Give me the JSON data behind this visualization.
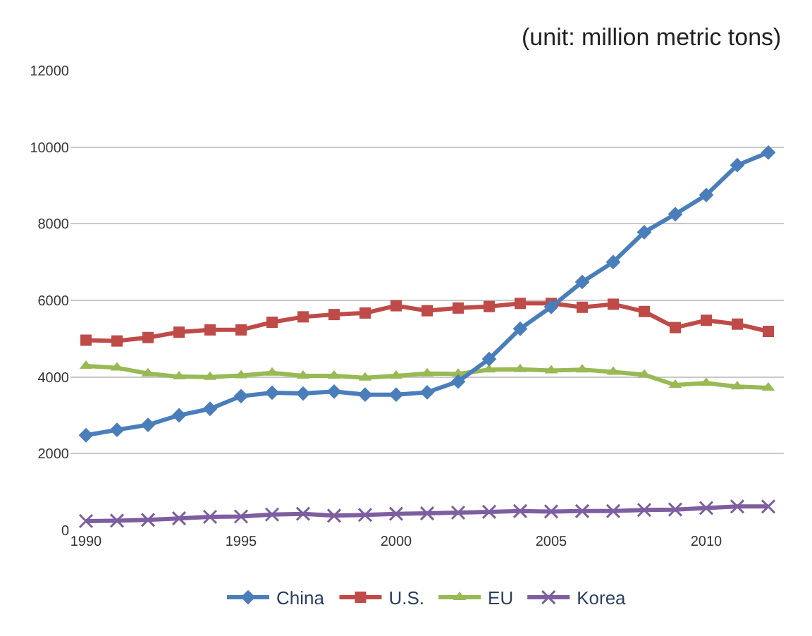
{
  "chart_data": {
    "type": "line",
    "annotations": [
      "(unit: million metric tons)"
    ],
    "x": [
      1990,
      1991,
      1992,
      1993,
      1994,
      1995,
      1996,
      1997,
      1998,
      1999,
      2000,
      2001,
      2002,
      2003,
      2004,
      2005,
      2006,
      2007,
      2008,
      2009,
      2010,
      2011,
      2012
    ],
    "series": [
      {
        "name": "China",
        "color": "#4a7ebb",
        "marker": "diamond",
        "values": [
          2480,
          2620,
          2750,
          3000,
          3170,
          3500,
          3590,
          3570,
          3620,
          3540,
          3540,
          3600,
          3880,
          4470,
          5260,
          5830,
          6480,
          7000,
          7780,
          8250,
          8750,
          9530,
          9860
        ]
      },
      {
        "name": "U.S.",
        "color": "#be4b48",
        "marker": "square",
        "values": [
          4960,
          4940,
          5030,
          5170,
          5230,
          5230,
          5430,
          5570,
          5630,
          5670,
          5860,
          5730,
          5800,
          5840,
          5920,
          5920,
          5820,
          5900,
          5710,
          5290,
          5480,
          5380,
          5190
        ]
      },
      {
        "name": "EU",
        "color": "#98b954",
        "marker": "triangle",
        "values": [
          4290,
          4240,
          4090,
          4010,
          4000,
          4040,
          4110,
          4030,
          4030,
          3980,
          4030,
          4090,
          4080,
          4190,
          4200,
          4170,
          4190,
          4130,
          4060,
          3790,
          3840,
          3750,
          3720
        ]
      },
      {
        "name": "Korea",
        "color": "#7d5fa0",
        "marker": "cross",
        "values": [
          240,
          250,
          270,
          310,
          350,
          360,
          410,
          430,
          380,
          400,
          430,
          440,
          460,
          480,
          500,
          490,
          500,
          500,
          530,
          540,
          580,
          620,
          620
        ]
      }
    ],
    "xlim": [
      1989.5,
      2012.5
    ],
    "xticks": [
      1990,
      1995,
      2000,
      2005,
      2010
    ],
    "ylim": [
      0,
      12000
    ],
    "yticks": [
      0,
      2000,
      4000,
      6000,
      8000,
      10000,
      12000
    ],
    "grid": "y",
    "legend": "bottom"
  }
}
